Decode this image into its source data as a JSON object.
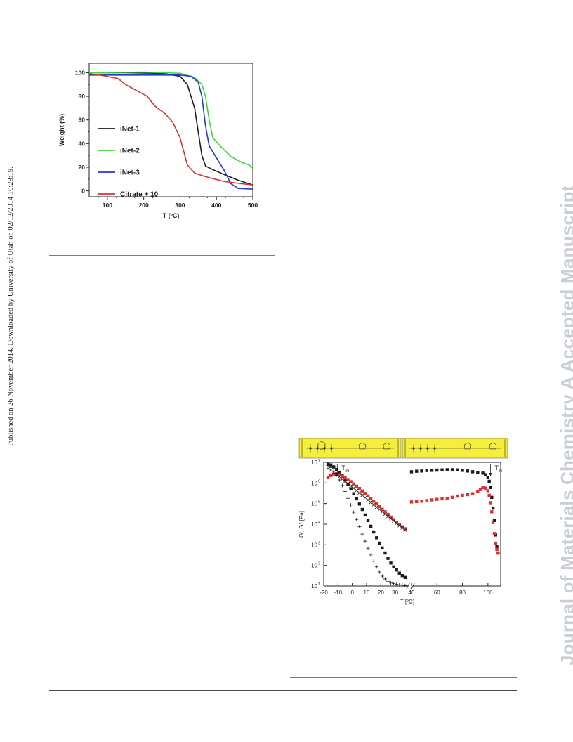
{
  "side_note": "Published on 26 November 2014. Downloaded by University of Utah on 02/12/2014 10:28:19.",
  "watermark": "Journal of Materials Chemistry A Accepted Manuscript",
  "colors": {
    "black": "#1c1c1c",
    "green": "#33dd33",
    "blue": "#2a35d8",
    "red": "#dd3030",
    "panel_yellow": "#f5ee3a"
  },
  "tga_chart": {
    "chart_data": {
      "type": "line",
      "xlabel": "T (ºC)",
      "ylabel": "Weight (%)",
      "xlim": [
        50,
        500
      ],
      "ylim": [
        -5,
        108
      ],
      "x_ticks": [
        100,
        200,
        300,
        400,
        500
      ],
      "y_ticks": [
        0,
        20,
        40,
        60,
        80,
        100
      ],
      "legend_position": "left",
      "series": [
        {
          "name": "iNet-1",
          "color": "#1c1c1c",
          "x": [
            50,
            150,
            250,
            300,
            320,
            340,
            350,
            360,
            370,
            390,
            420,
            460,
            500
          ],
          "y": [
            100,
            100,
            99.5,
            97,
            90,
            70,
            50,
            30,
            21,
            18,
            14,
            9,
            5
          ]
        },
        {
          "name": "iNet-2",
          "color": "#33dd33",
          "x": [
            50,
            200,
            300,
            340,
            360,
            370,
            380,
            390,
            410,
            440,
            470,
            490,
            500
          ],
          "y": [
            100,
            100.5,
            99.5,
            96,
            90,
            80,
            60,
            45,
            38,
            29,
            24,
            22,
            19
          ]
        },
        {
          "name": "iNet-3",
          "color": "#2a35d8",
          "x": [
            50,
            200,
            300,
            330,
            350,
            360,
            370,
            380,
            400,
            420,
            440,
            460,
            500
          ],
          "y": [
            98,
            98,
            98,
            97,
            92,
            80,
            55,
            38,
            28,
            18,
            6,
            2,
            1.5
          ]
        },
        {
          "name": "Citrate + 10",
          "color": "#dd3030",
          "x": [
            50,
            80,
            130,
            150,
            180,
            210,
            230,
            260,
            280,
            300,
            320,
            340,
            370,
            420,
            470,
            500
          ],
          "y": [
            99,
            98,
            95,
            90,
            85,
            80,
            72,
            65,
            58,
            45,
            22,
            15,
            12,
            8,
            6,
            5
          ]
        }
      ]
    }
  },
  "rheology_chart": {
    "annotations": {
      "tni": "T",
      "tni_sub": "ni",
      "tm": "T",
      "tm_sub": "m"
    },
    "chart_data": {
      "type": "scatter",
      "xlabel": "T  [ºC]",
      "ylabel": "G', G''  [Pa]",
      "y_scale": "log",
      "ylim": [
        10,
        10000000
      ],
      "y_ticks": [
        10,
        100,
        1000,
        10000,
        100000,
        1000000,
        10000000
      ],
      "y_tick_labels": [
        "10",
        "10",
        "10",
        "10",
        "10",
        "10",
        "10"
      ],
      "y_tick_exponents": [
        "1",
        "2",
        "3",
        "4",
        "5",
        "6",
        "7"
      ],
      "broken_x_axis": true,
      "segments": [
        {
          "xlim": [
            -20,
            40
          ],
          "x_ticks": [
            -20,
            -10,
            0,
            10,
            20,
            30
          ],
          "series": [
            {
              "marker": "square",
              "color": "#1c1c1c",
              "x": [
                -17,
                -15,
                -13,
                -11,
                -9,
                -7,
                -5,
                -3,
                -1,
                1,
                3,
                5,
                7,
                9,
                11,
                13,
                15,
                17,
                19,
                21,
                23,
                25,
                27,
                29,
                31,
                33,
                35,
                37
              ],
              "y": [
                8000000,
                7500000,
                6000000,
                4500000,
                3200000,
                2200000,
                1400000,
                850000,
                520000,
                300000,
                170000,
                95000,
                52000,
                28000,
                15000,
                8000,
                4200,
                2200,
                1200,
                700,
                400,
                220,
                130,
                85,
                60,
                42,
                32,
                26
              ]
            },
            {
              "marker": "square",
              "color": "#dd3030",
              "x": [
                -17,
                -15,
                -13,
                -11,
                -9,
                -7,
                -5,
                -3,
                -1,
                1,
                3,
                5,
                7,
                9,
                11,
                13,
                15,
                17,
                19,
                21,
                23,
                25,
                27,
                29,
                31,
                33,
                35,
                37
              ],
              "y": [
                1800000,
                2300000,
                2700000,
                2800000,
                2500000,
                2100000,
                1750000,
                1450000,
                1150000,
                900000,
                700000,
                540000,
                410000,
                310000,
                235000,
                175000,
                130000,
                97000,
                72000,
                53000,
                40000,
                30000,
                22000,
                16500,
                12500,
                9500,
                7500,
                6000
              ]
            },
            {
              "marker": "plus",
              "color": "#1c1c1c",
              "x": [
                -17,
                -15,
                -13,
                -11,
                -9,
                -7,
                -5,
                -3,
                -1,
                1,
                3,
                5,
                7,
                9,
                11,
                13,
                15,
                17,
                19,
                21,
                23,
                25,
                27,
                29,
                31,
                33,
                35,
                37
              ],
              "y": [
                7000000,
                5500000,
                3800000,
                2400000,
                1400000,
                750000,
                380000,
                180000,
                85000,
                38000,
                17000,
                7500,
                3300,
                1500,
                680,
                320,
                160,
                85,
                48,
                30,
                22,
                17,
                14,
                13,
                12,
                11.5,
                11,
                10.5
              ]
            },
            {
              "marker": "cross",
              "color": "#1c1c1c",
              "x": [
                -17,
                -15,
                -13,
                -11,
                -9,
                -7,
                -5,
                -3,
                -1,
                1,
                3,
                5,
                7,
                9,
                11,
                13,
                15,
                17,
                19,
                21,
                23,
                25,
                27,
                29,
                31,
                33,
                35,
                37
              ],
              "y": [
                5000000,
                4200000,
                3300000,
                2600000,
                2000000,
                1550000,
                1200000,
                930000,
                720000,
                560000,
                430000,
                330000,
                255000,
                195000,
                150000,
                115000,
                88000,
                67000,
                52000,
                40000,
                31000,
                24000,
                18500,
                14500,
                11000,
                8500,
                6600,
                5100
              ]
            }
          ]
        },
        {
          "xlim": [
            40,
            110
          ],
          "x_ticks": [
            40,
            60,
            80,
            100
          ],
          "series": [
            {
              "marker": "square",
              "color": "#1c1c1c",
              "x": [
                40,
                44,
                48,
                52,
                56,
                60,
                64,
                68,
                72,
                76,
                80,
                84,
                88,
                92,
                96,
                98,
                100,
                101,
                102,
                103,
                104,
                105,
                106,
                107,
                108
              ],
              "y": [
                3500000,
                3700000,
                3800000,
                4000000,
                4100000,
                4200000,
                4300000,
                4400000,
                4400000,
                4300000,
                4100000,
                3800000,
                3500000,
                3200000,
                3000000,
                2500000,
                1800000,
                1200000,
                600000,
                200000,
                60000,
                15000,
                3000,
                800,
                400
              ]
            },
            {
              "marker": "square",
              "color": "#dd3030",
              "x": [
                40,
                44,
                48,
                52,
                56,
                60,
                64,
                68,
                72,
                76,
                80,
                84,
                88,
                92,
                94,
                96,
                98,
                100,
                101,
                102,
                103,
                104,
                105,
                106,
                107,
                108
              ],
              "y": [
                120000,
                125000,
                130000,
                140000,
                150000,
                160000,
                170000,
                180000,
                200000,
                230000,
                250000,
                270000,
                300000,
                380000,
                480000,
                600000,
                560000,
                420000,
                250000,
                110000,
                40000,
                12000,
                3500,
                1200,
                600,
                400
              ]
            }
          ]
        }
      ]
    }
  }
}
